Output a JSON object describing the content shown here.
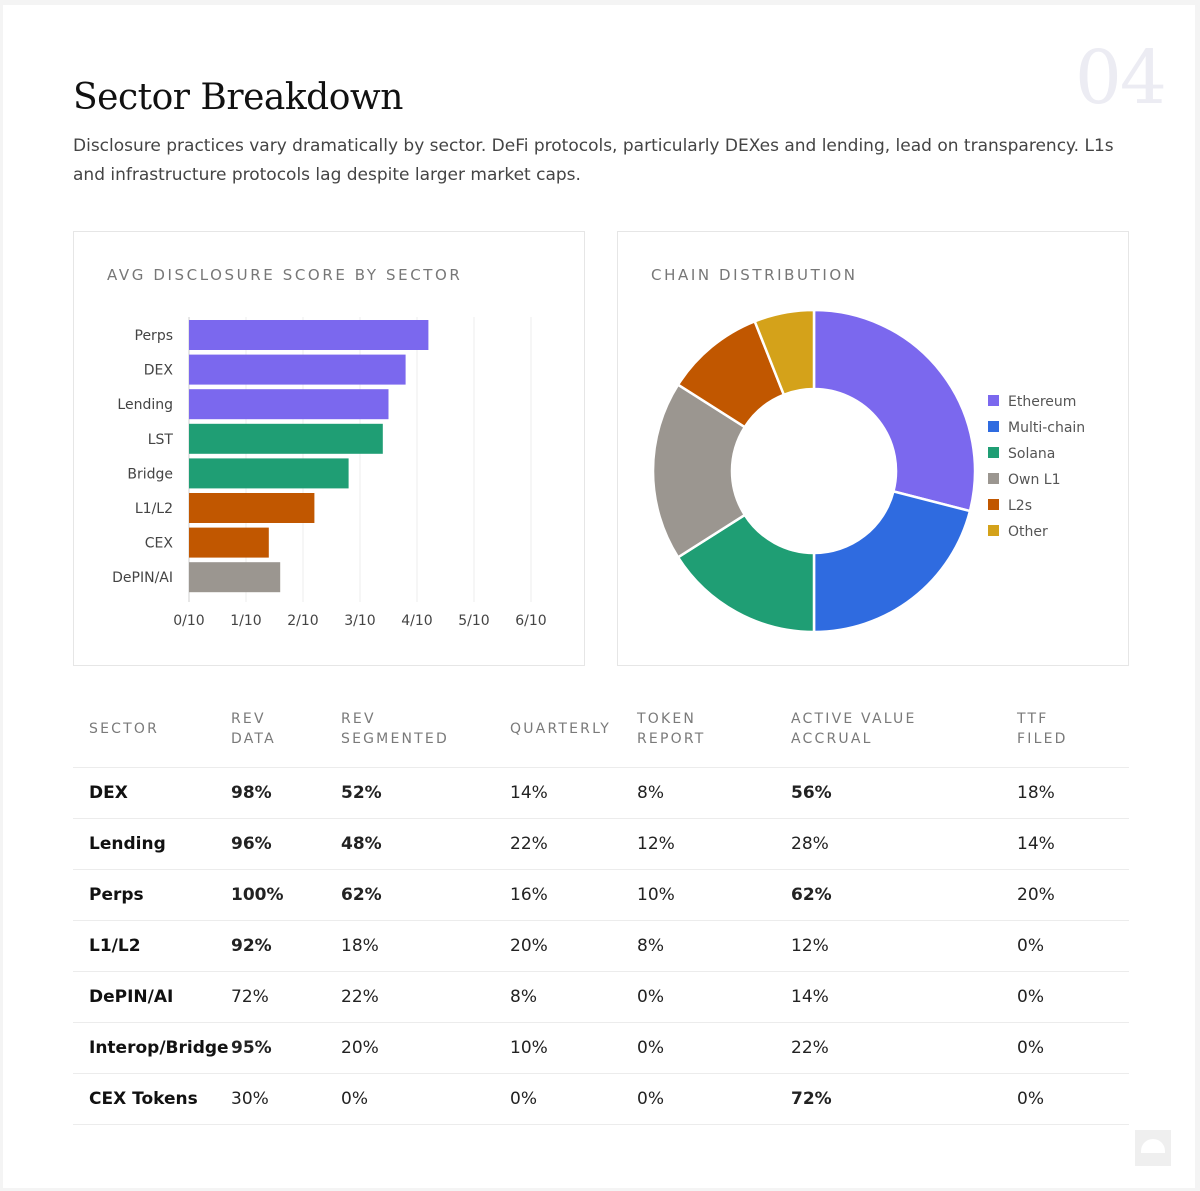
{
  "page_number": "04",
  "heading": "Sector Breakdown",
  "description": "Disclosure practices vary dramatically by sector. DeFi protocols, particularly DEXes and lending, lead on transparency. L1s and infrastructure protocols lag despite larger market caps.",
  "colors": {
    "purple": "#7b68ee",
    "blue": "#2f6be0",
    "green": "#1f9e74",
    "gray": "#9b9690",
    "orange": "#c15700",
    "gold": "#d4a21a",
    "highlight_text": "#1b9a6e"
  },
  "chart_data": [
    {
      "type": "bar",
      "orientation": "horizontal",
      "title": "AVG DISCLOSURE SCORE BY SECTOR",
      "categories": [
        "Perps",
        "DEX",
        "Lending",
        "LST",
        "Bridge",
        "L1/L2",
        "CEX",
        "DePIN/AI"
      ],
      "values": [
        4.2,
        3.8,
        3.5,
        3.4,
        2.8,
        2.2,
        1.4,
        1.6
      ],
      "bar_colors": [
        "#7b68ee",
        "#7b68ee",
        "#7b68ee",
        "#1f9e74",
        "#1f9e74",
        "#c15700",
        "#c15700",
        "#9b9690"
      ],
      "xlim": [
        0,
        6
      ],
      "tick_labels": [
        "0/10",
        "1/10",
        "2/10",
        "3/10",
        "4/10",
        "5/10",
        "6/10"
      ],
      "grid": true
    },
    {
      "type": "pie",
      "donut": true,
      "title": "CHAIN DISTRIBUTION",
      "labels": [
        "Ethereum",
        "Multi-chain",
        "Solana",
        "Own L1",
        "L2s",
        "Other"
      ],
      "values": [
        29,
        21,
        16,
        18,
        10,
        6
      ],
      "colors": [
        "#7b68ee",
        "#2f6be0",
        "#1f9e74",
        "#9b9690",
        "#c15700",
        "#d4a21a"
      ],
      "legend_position": "right"
    }
  ],
  "table": {
    "headers": [
      "SECTOR",
      "REV\nDATA",
      "REV\nSEGMENTED",
      "QUARTERLY",
      "TOKEN\nREPORT",
      "ACTIVE VALUE\nACCRUAL",
      "TTF\nFILED"
    ],
    "rows": [
      {
        "cells": [
          "DEX",
          "98%",
          "52%",
          "14%",
          "8%",
          "56%",
          "18%"
        ],
        "highlight": [
          false,
          true,
          true,
          false,
          false,
          true,
          false
        ]
      },
      {
        "cells": [
          "Lending",
          "96%",
          "48%",
          "22%",
          "12%",
          "28%",
          "14%"
        ],
        "highlight": [
          false,
          true,
          true,
          false,
          false,
          false,
          false
        ]
      },
      {
        "cells": [
          "Perps",
          "100%",
          "62%",
          "16%",
          "10%",
          "62%",
          "20%"
        ],
        "highlight": [
          false,
          true,
          true,
          false,
          false,
          true,
          false
        ]
      },
      {
        "cells": [
          "L1/L2",
          "92%",
          "18%",
          "20%",
          "8%",
          "12%",
          "0%"
        ],
        "highlight": [
          false,
          true,
          false,
          false,
          false,
          false,
          false
        ]
      },
      {
        "cells": [
          "DePIN/AI",
          "72%",
          "22%",
          "8%",
          "0%",
          "14%",
          "0%"
        ],
        "highlight": [
          false,
          false,
          false,
          false,
          false,
          false,
          false
        ]
      },
      {
        "cells": [
          "Interop/Bridge",
          "95%",
          "20%",
          "10%",
          "0%",
          "22%",
          "0%"
        ],
        "highlight": [
          false,
          true,
          false,
          false,
          false,
          false,
          false
        ]
      },
      {
        "cells": [
          "CEX Tokens",
          "30%",
          "0%",
          "0%",
          "0%",
          "72%",
          "0%"
        ],
        "highlight": [
          false,
          false,
          false,
          false,
          false,
          true,
          false
        ]
      }
    ]
  }
}
